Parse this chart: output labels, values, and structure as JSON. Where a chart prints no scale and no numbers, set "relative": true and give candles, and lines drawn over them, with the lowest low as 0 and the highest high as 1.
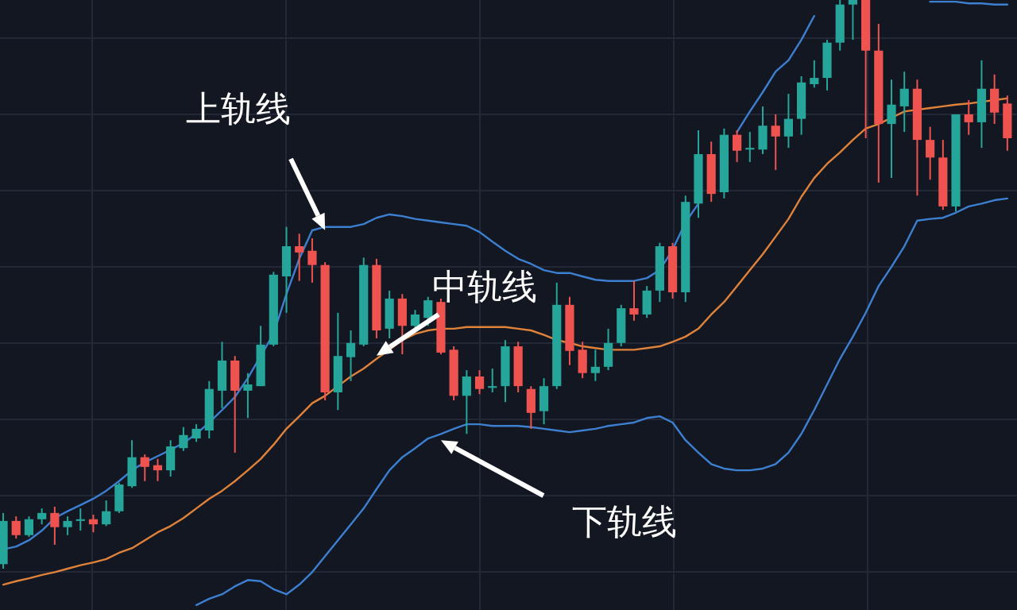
{
  "chart_data": {
    "type": "candlestick",
    "relative": true,
    "grid": true,
    "categories": [
      null,
      null,
      null,
      null,
      null,
      null,
      null,
      null,
      null,
      null,
      null,
      null,
      null,
      null,
      null,
      null,
      null,
      null,
      null,
      null,
      null,
      null,
      null,
      null,
      null,
      null,
      null,
      null,
      null,
      null,
      null,
      null,
      null,
      null,
      null,
      null,
      null,
      null,
      null,
      null,
      null,
      null,
      null,
      null,
      null,
      null,
      null,
      null,
      null,
      null,
      null,
      null,
      null,
      null,
      null,
      null,
      null,
      null,
      null,
      null,
      null,
      null,
      null,
      null,
      null,
      null,
      null,
      null,
      null,
      null,
      null,
      null,
      null,
      null,
      null,
      null,
      null,
      null,
      null
    ],
    "ohlc": [
      [
        0.008,
        0.098,
        0,
        0.084
      ],
      [
        0.084,
        0.092,
        0.053,
        0.059
      ],
      [
        0.059,
        0.092,
        0.056,
        0.087
      ],
      [
        0.087,
        0.106,
        0.078,
        0.098
      ],
      [
        0.098,
        0.109,
        0.042,
        0.073
      ],
      [
        0.073,
        0.092,
        0.059,
        0.084
      ],
      [
        0.084,
        0.106,
        0.067,
        0.087
      ],
      [
        0.087,
        0.095,
        0.064,
        0.078
      ],
      [
        0.078,
        0.12,
        0.075,
        0.101
      ],
      [
        0.101,
        0.151,
        0.098,
        0.148
      ],
      [
        0.145,
        0.226,
        0.142,
        0.196
      ],
      [
        0.196,
        0.201,
        0.154,
        0.179
      ],
      [
        0.182,
        0.193,
        0.154,
        0.173
      ],
      [
        0.173,
        0.226,
        0.162,
        0.215
      ],
      [
        0.212,
        0.249,
        0.207,
        0.235
      ],
      [
        0.229,
        0.254,
        0.223,
        0.246
      ],
      [
        0.243,
        0.33,
        0.229,
        0.316
      ],
      [
        0.313,
        0.399,
        0.282,
        0.366
      ],
      [
        0.366,
        0.374,
        0.204,
        0.313
      ],
      [
        0.313,
        0.344,
        0.265,
        0.324
      ],
      [
        0.321,
        0.427,
        0.321,
        0.394
      ],
      [
        0.394,
        0.522,
        0.391,
        0.517
      ],
      [
        0.514,
        0.601,
        0.45,
        0.567
      ],
      [
        0.567,
        0.589,
        0.506,
        0.556
      ],
      [
        0.559,
        0.581,
        0.503,
        0.534
      ],
      [
        0.534,
        0.539,
        0.296,
        0.31
      ],
      [
        0.31,
        0.45,
        0.279,
        0.374
      ],
      [
        0.372,
        0.419,
        0.33,
        0.397
      ],
      [
        0.394,
        0.547,
        0.391,
        0.534
      ],
      [
        0.534,
        0.545,
        0.405,
        0.419
      ],
      [
        0.422,
        0.489,
        0.405,
        0.475
      ],
      [
        0.475,
        0.483,
        0.377,
        0.427
      ],
      [
        0.427,
        0.455,
        0.416,
        0.447
      ],
      [
        0.441,
        0.478,
        0.427,
        0.472
      ],
      [
        0.469,
        0.475,
        0.377,
        0.38
      ],
      [
        0.385,
        0.391,
        0.296,
        0.304
      ],
      [
        0.304,
        0.349,
        0.237,
        0.338
      ],
      [
        0.338,
        0.349,
        0.307,
        0.316
      ],
      [
        0.318,
        0.352,
        0.31,
        0.321
      ],
      [
        0.321,
        0.402,
        0.293,
        0.391
      ],
      [
        0.391,
        0.399,
        0.31,
        0.321
      ],
      [
        0.316,
        0.321,
        0.246,
        0.274
      ],
      [
        0.277,
        0.335,
        0.254,
        0.321
      ],
      [
        0.321,
        0.503,
        0.316,
        0.464
      ],
      [
        0.464,
        0.478,
        0.358,
        0.383
      ],
      [
        0.385,
        0.399,
        0.335,
        0.344
      ],
      [
        0.344,
        0.385,
        0.33,
        0.355
      ],
      [
        0.355,
        0.422,
        0.349,
        0.397
      ],
      [
        0.397,
        0.464,
        0.391,
        0.458
      ],
      [
        0.458,
        0.506,
        0.436,
        0.447
      ],
      [
        0.447,
        0.497,
        0.441,
        0.489
      ],
      [
        0.489,
        0.573,
        0.469,
        0.567
      ],
      [
        0.567,
        0.573,
        0.475,
        0.486
      ],
      [
        0.486,
        0.656,
        0.469,
        0.645
      ],
      [
        0.642,
        0.771,
        0.617,
        0.729
      ],
      [
        0.729,
        0.751,
        0.645,
        0.659
      ],
      [
        0.662,
        0.774,
        0.651,
        0.763
      ],
      [
        0.763,
        0.771,
        0.715,
        0.735
      ],
      [
        0.737,
        0.768,
        0.715,
        0.74
      ],
      [
        0.737,
        0.813,
        0.729,
        0.779
      ],
      [
        0.779,
        0.799,
        0.701,
        0.76
      ],
      [
        0.76,
        0.835,
        0.74,
        0.791
      ],
      [
        0.791,
        0.866,
        0.763,
        0.855
      ],
      [
        0.852,
        0.894,
        0.846,
        0.863
      ],
      [
        0.863,
        0.93,
        0.841,
        0.925
      ],
      [
        0.925,
        1,
        0.911,
        0.992
      ],
      [
        0.992,
        1,
        0.93,
        1
      ],
      [
        1,
        1,
        0.757,
        0.911
      ],
      [
        0.911,
        0.958,
        0.679,
        0.782
      ],
      [
        0.782,
        0.86,
        0.687,
        0.816
      ],
      [
        0.813,
        0.874,
        0.768,
        0.844
      ],
      [
        0.844,
        0.86,
        0.656,
        0.754
      ],
      [
        0.754,
        0.777,
        0.684,
        0.723
      ],
      [
        0.723,
        0.754,
        0.631,
        0.637
      ],
      [
        0.637,
        0.799,
        0.628,
        0.799
      ],
      [
        0.799,
        0.824,
        0.763,
        0.785
      ],
      [
        0.785,
        0.894,
        0.74,
        0.844
      ],
      [
        0.844,
        0.869,
        0.782,
        0.802
      ],
      [
        0.818,
        0.832,
        0.735,
        0.757
      ]
    ],
    "colors": [
      "#26a69a",
      "#ef5350",
      "#26a69a",
      "#26a69a",
      "#ef5350",
      "#26a69a",
      "#26a69a",
      "#ef5350",
      "#26a69a",
      "#26a69a",
      "#26a69a",
      "#ef5350",
      "#ef5350",
      "#26a69a",
      "#26a69a",
      "#26a69a",
      "#26a69a",
      "#26a69a",
      "#ef5350",
      "#26a69a",
      "#26a69a",
      "#26a69a",
      "#26a69a",
      "#ef5350",
      "#ef5350",
      "#ef5350",
      "#26a69a",
      "#26a69a",
      "#26a69a",
      "#ef5350",
      "#26a69a",
      "#ef5350",
      "#26a69a",
      "#26a69a",
      "#ef5350",
      "#ef5350",
      "#26a69a",
      "#ef5350",
      "#26a69a",
      "#26a69a",
      "#ef5350",
      "#ef5350",
      "#26a69a",
      "#26a69a",
      "#ef5350",
      "#ef5350",
      "#26a69a",
      "#26a69a",
      "#26a69a",
      "#ef5350",
      "#26a69a",
      "#26a69a",
      "#ef5350",
      "#26a69a",
      "#26a69a",
      "#ef5350",
      "#26a69a",
      "#ef5350",
      "#26a69a",
      "#26a69a",
      "#ef5350",
      "#26a69a",
      "#26a69a",
      "#26a69a",
      "#26a69a",
      "#26a69a",
      "#26a69a",
      "#ef5350",
      "#ef5350",
      "#26a69a",
      "#26a69a",
      "#ef5350",
      "#ef5350",
      "#ef5350",
      "#26a69a",
      "#ef5350",
      "#26a69a",
      "#ef5350",
      "#ef5350"
    ],
    "series": [
      {
        "type": "line",
        "color": "#3d7fd0",
        "values": [
          0.034,
          0.039,
          0.05,
          0.067,
          0.089,
          0.101,
          0.112,
          0.123,
          0.137,
          0.154,
          0.173,
          0.187,
          0.198,
          0.209,
          0.221,
          0.237,
          0.257,
          0.279,
          0.302,
          0.335,
          0.374,
          0.413,
          0.483,
          0.545,
          0.595,
          0.601,
          0.601,
          0.601,
          0.606,
          0.617,
          0.623,
          0.62,
          0.615,
          0.612,
          0.609,
          0.606,
          0.603,
          0.592,
          0.575,
          0.559,
          0.545,
          0.536,
          0.525,
          0.52,
          0.52,
          0.514,
          0.508,
          0.506,
          0.506,
          0.506,
          0.511,
          0.525,
          0.561,
          0.609,
          0.642,
          null,
          null,
          0.768,
          0.804,
          0.838,
          0.874,
          0.894,
          0.93,
          0.972,
          null,
          null,
          null,
          null,
          null,
          null,
          null,
          null,
          0.997,
          0.997,
          0.997,
          0.994,
          0.994,
          0.992,
          0.992
        ]
      },
      {
        "type": "line",
        "color": "#e0823a",
        "values": [
          -0.028,
          -0.022,
          -0.017,
          -0.011,
          -0.006,
          0,
          0.006,
          0.011,
          0.017,
          0.028,
          0.036,
          0.05,
          0.064,
          0.075,
          0.089,
          0.106,
          0.123,
          0.137,
          0.154,
          0.173,
          0.193,
          0.218,
          0.246,
          0.268,
          0.291,
          0.304,
          0.321,
          0.338,
          0.352,
          0.369,
          0.385,
          0.402,
          0.413,
          0.419,
          0.422,
          0.422,
          0.425,
          0.425,
          0.425,
          0.425,
          0.422,
          0.419,
          0.411,
          0.402,
          0.397,
          0.391,
          0.388,
          0.385,
          0.385,
          0.385,
          0.388,
          0.391,
          0.399,
          0.408,
          0.422,
          0.447,
          0.469,
          0.497,
          0.525,
          0.553,
          0.584,
          0.615,
          0.654,
          0.687,
          0.712,
          0.732,
          0.754,
          0.774,
          0.782,
          0.793,
          0.804,
          0.807,
          0.81,
          0.813,
          0.816,
          0.818,
          0.821,
          0.824,
          0.827
        ]
      },
      {
        "type": "line",
        "color": "#3d7fd0",
        "values": [
          null,
          null,
          null,
          null,
          null,
          null,
          null,
          null,
          null,
          null,
          null,
          null,
          null,
          null,
          null,
          -0.064,
          -0.053,
          -0.045,
          -0.031,
          -0.02,
          -0.022,
          -0.036,
          -0.045,
          -0.028,
          -0.006,
          0.022,
          0.05,
          0.078,
          0.106,
          0.14,
          0.173,
          0.196,
          0.212,
          0.229,
          0.237,
          0.246,
          0.254,
          0.254,
          0.251,
          0.251,
          0.251,
          0.249,
          0.246,
          0.243,
          0.24,
          0.243,
          0.246,
          0.251,
          0.254,
          0.257,
          0.265,
          0.268,
          0.257,
          0.226,
          0.204,
          0.184,
          0.176,
          0.173,
          0.173,
          0.176,
          0.184,
          0.204,
          0.237,
          0.279,
          0.324,
          0.369,
          0.408,
          0.45,
          0.497,
          0.531,
          0.567,
          0.612,
          0.615,
          0.617,
          0.626,
          0.637,
          0.642,
          0.648,
          0.651
        ]
      }
    ],
    "annotations": [
      "上轨线",
      "中轨线",
      "下轨线"
    ]
  }
}
